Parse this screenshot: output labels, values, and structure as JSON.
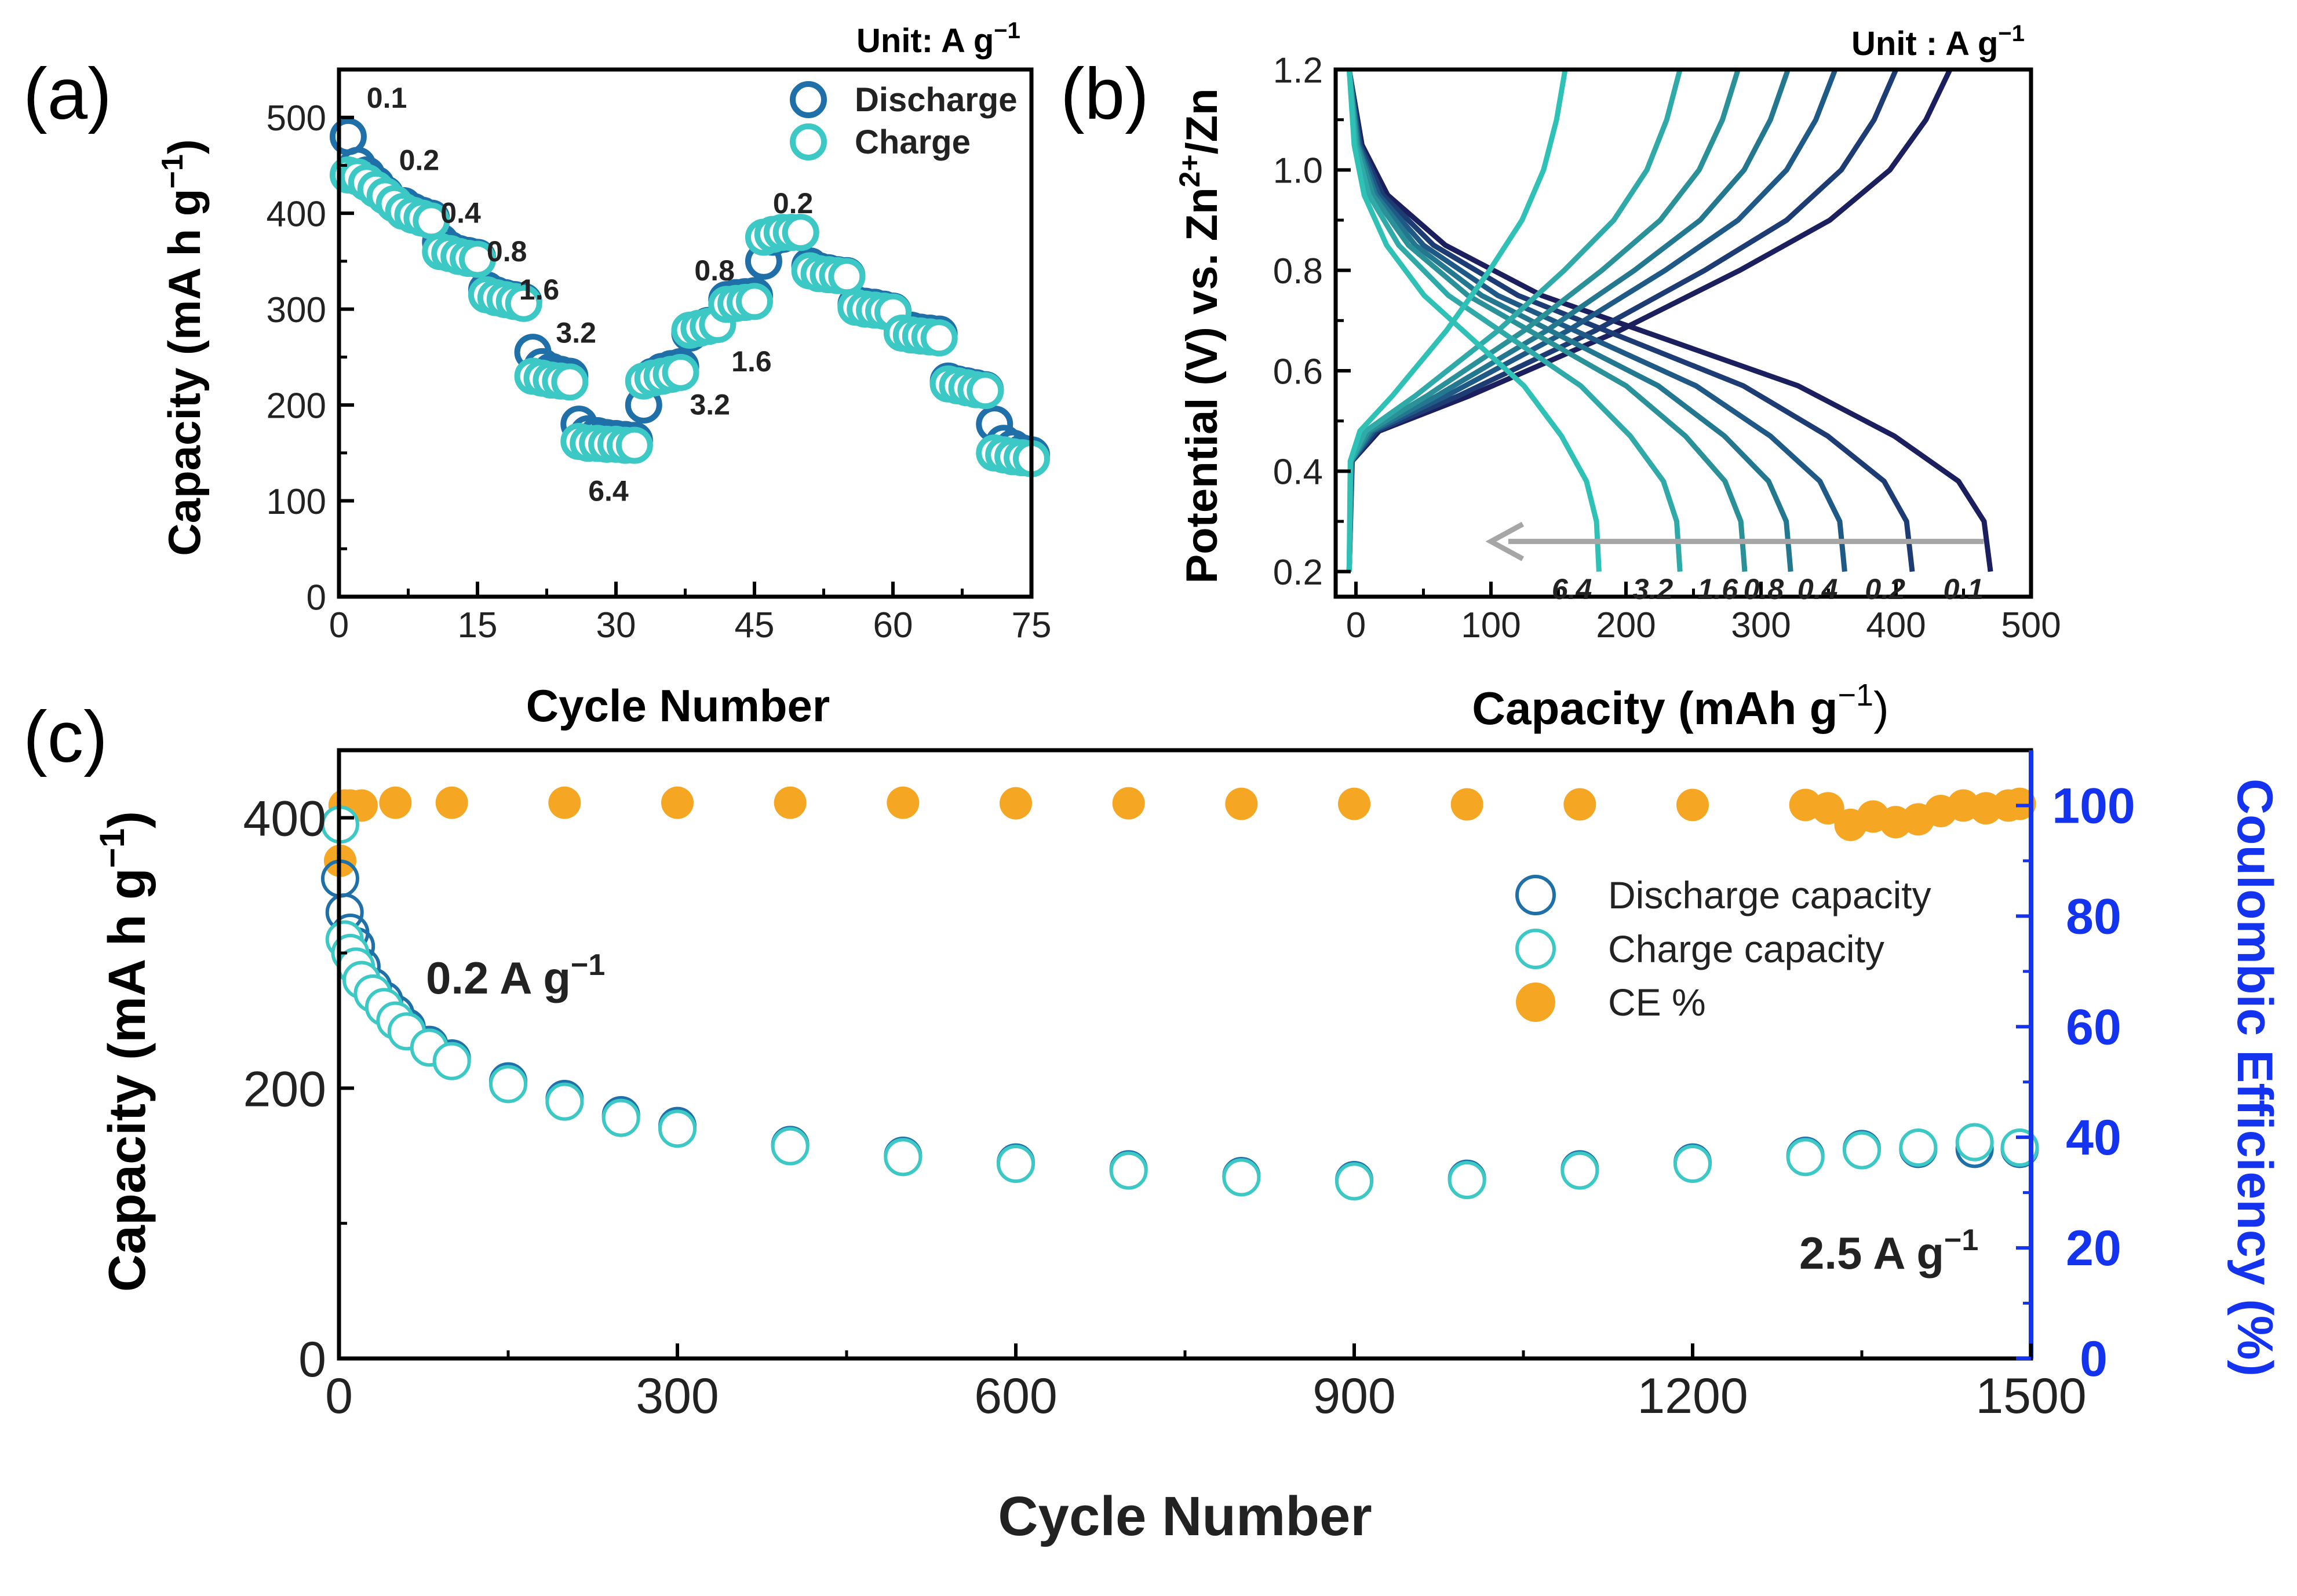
{
  "chart_data": [
    {
      "panel": "(a)",
      "type": "scatter",
      "xlabel": "Cycle Number",
      "ylabel": "Capacity (mA h g",
      "ylabel_sup": "−1",
      "ylabel_close": ")",
      "xlim": [
        0,
        75
      ],
      "ylim": [
        0,
        550
      ],
      "xticks": [
        0,
        15,
        30,
        45,
        60,
        75
      ],
      "yticks": [
        0,
        100,
        200,
        300,
        400,
        500
      ],
      "unit_label": "Unit: A g",
      "unit_sup": "−1",
      "legend": [
        "Discharge",
        "Charge"
      ],
      "rate_labels": [
        {
          "text": "0.1",
          "cycle": 3,
          "cap": 510
        },
        {
          "text": "0.2",
          "cycle": 6.5,
          "cap": 445
        },
        {
          "text": "0.4",
          "cycle": 11,
          "cap": 390
        },
        {
          "text": "0.8",
          "cycle": 16,
          "cap": 350
        },
        {
          "text": "1.6",
          "cycle": 19.5,
          "cap": 310
        },
        {
          "text": "3.2",
          "cycle": 23.5,
          "cap": 265
        },
        {
          "text": "6.4",
          "cycle": 27,
          "cap": 100
        },
        {
          "text": "3.2",
          "cycle": 38,
          "cap": 190
        },
        {
          "text": "1.6",
          "cycle": 42.5,
          "cap": 235
        },
        {
          "text": "0.8",
          "cycle": 38.5,
          "cap": 330
        },
        {
          "text": "0.2",
          "cycle": 47,
          "cap": 400
        }
      ],
      "series": [
        {
          "name": "Discharge",
          "x": [
            1,
            2,
            3,
            4,
            5,
            6,
            7,
            8,
            9,
            10,
            11,
            12,
            13,
            14,
            15,
            16,
            17,
            18,
            19,
            20,
            21,
            22,
            23,
            24,
            25,
            26,
            27,
            28,
            29,
            30,
            31,
            32,
            33,
            34,
            35,
            36,
            37,
            38,
            39,
            40,
            41,
            42,
            43,
            44,
            45,
            46,
            47,
            48,
            49,
            50,
            51,
            52,
            53,
            54,
            55,
            56,
            57,
            58,
            59,
            60,
            61,
            62,
            63,
            64,
            65,
            66,
            67,
            68,
            69,
            70,
            71,
            72,
            73,
            74,
            75
          ],
          "values": [
            480,
            450,
            440,
            430,
            420,
            410,
            408,
            402,
            398,
            395,
            370,
            362,
            358,
            356,
            354,
            320,
            315,
            312,
            310,
            308,
            255,
            240,
            235,
            232,
            230,
            180,
            170,
            168,
            166,
            165,
            164,
            163,
            200,
            230,
            235,
            238,
            240,
            275,
            280,
            283,
            285,
            310,
            312,
            313,
            314,
            350,
            375,
            378,
            380,
            380,
            345,
            340,
            338,
            336,
            335,
            305,
            303,
            302,
            300,
            298,
            280,
            278,
            276,
            275,
            274,
            225,
            222,
            220,
            218,
            216,
            180,
            160,
            155,
            150,
            148
          ]
        },
        {
          "name": "Charge",
          "x": [
            1,
            2,
            3,
            4,
            5,
            6,
            7,
            8,
            9,
            10,
            11,
            12,
            13,
            14,
            15,
            16,
            17,
            18,
            19,
            20,
            21,
            22,
            23,
            24,
            25,
            26,
            27,
            28,
            29,
            30,
            31,
            32,
            33,
            34,
            35,
            36,
            37,
            38,
            39,
            40,
            41,
            42,
            43,
            44,
            45,
            46,
            47,
            48,
            49,
            50,
            51,
            52,
            53,
            54,
            55,
            56,
            57,
            58,
            59,
            60,
            61,
            62,
            63,
            64,
            65,
            66,
            67,
            68,
            69,
            70,
            71,
            72,
            73,
            74,
            75
          ],
          "values": [
            440,
            438,
            432,
            425,
            418,
            410,
            402,
            398,
            395,
            392,
            360,
            358,
            355,
            353,
            352,
            315,
            312,
            310,
            308,
            306,
            230,
            228,
            226,
            225,
            224,
            162,
            160,
            160,
            159,
            159,
            158,
            158,
            225,
            228,
            230,
            232,
            234,
            278,
            280,
            282,
            284,
            305,
            306,
            307,
            308,
            375,
            378,
            380,
            380,
            380,
            340,
            337,
            336,
            335,
            334,
            302,
            300,
            299,
            298,
            297,
            275,
            273,
            272,
            271,
            270,
            222,
            220,
            218,
            216,
            215,
            150,
            148,
            146,
            145,
            144
          ]
        }
      ]
    },
    {
      "panel": "(b)",
      "type": "line",
      "xlabel": "Capacity (mAh g",
      "xlabel_sup": "−1",
      "xlabel_close": ")",
      "ylabel_pre": "Potential (V) vs. Zn",
      "ylabel_sup": "2+",
      "ylabel_post": "/Zn",
      "xlim": [
        -15,
        500
      ],
      "ylim": [
        0.15,
        1.2
      ],
      "xticks": [
        0,
        100,
        200,
        300,
        400,
        500
      ],
      "yticks": [
        0.2,
        0.4,
        0.6,
        0.8,
        1.0,
        1.2
      ],
      "ytick_labels": [
        "0.2",
        "0.4",
        "0.6",
        "0.8",
        "1.0",
        "1.2"
      ],
      "unit_label": "Unit : A g",
      "unit_sup": "−1",
      "rates": [
        "0.1",
        "0.2",
        "0.4",
        "0.8",
        "1.6",
        "3.2",
        "6.4"
      ],
      "discharge_capacity": [
        470,
        412,
        362,
        322,
        288,
        240,
        180
      ],
      "charge_capacity": [
        440,
        400,
        355,
        320,
        283,
        240,
        155
      ],
      "colors": [
        "#1b1f5e",
        "#1d3c74",
        "#1f5a86",
        "#237890",
        "#2a9198",
        "#30aaa8",
        "#2fc0b6"
      ],
      "arrow": {
        "from": 465,
        "to": 100,
        "at_v": 0.26
      }
    },
    {
      "panel": "(c)",
      "type": "scatter",
      "xlabel": "Cycle Number",
      "ylabel": "Capacity (mA h g",
      "ylabel_sup": "−1",
      "ylabel_close": ")",
      "y2label": "Coulombic Efficiency (%)",
      "xlim": [
        0,
        1500
      ],
      "ylim": [
        0,
        450
      ],
      "y2lim": [
        0,
        110
      ],
      "xticks": [
        0,
        300,
        600,
        900,
        1200,
        1500
      ],
      "yticks": [
        0,
        200,
        400
      ],
      "y2ticks": [
        0,
        20,
        40,
        60,
        80,
        100
      ],
      "legend": [
        "Discharge capacity",
        "Charge capacity",
        "CE %"
      ],
      "annotation_top": "0.2 A g",
      "annotation_top_sup": "−1",
      "annotation_bottom": "2.5 A g",
      "annotation_bottom_sup": "−1",
      "series": [
        {
          "name": "Discharge capacity",
          "x": [
            1,
            5,
            10,
            15,
            20,
            30,
            40,
            50,
            60,
            80,
            100,
            150,
            200,
            250,
            300,
            400,
            500,
            600,
            700,
            800,
            900,
            1000,
            1100,
            1200,
            1300,
            1350,
            1400,
            1450,
            1490
          ],
          "values": [
            355,
            330,
            315,
            305,
            290,
            275,
            265,
            255,
            245,
            232,
            222,
            205,
            192,
            180,
            172,
            158,
            150,
            145,
            140,
            135,
            132,
            133,
            140,
            145,
            150,
            155,
            155,
            155,
            155
          ]
        },
        {
          "name": "Charge capacity",
          "x": [
            1,
            5,
            10,
            15,
            20,
            30,
            40,
            50,
            60,
            80,
            100,
            150,
            200,
            250,
            300,
            400,
            500,
            600,
            700,
            800,
            900,
            1000,
            1100,
            1200,
            1300,
            1350,
            1400,
            1450,
            1490
          ],
          "values": [
            395,
            310,
            300,
            290,
            280,
            270,
            260,
            250,
            242,
            230,
            220,
            203,
            190,
            178,
            170,
            157,
            149,
            144,
            139,
            134,
            131,
            132,
            139,
            144,
            149,
            154,
            156,
            160,
            156
          ]
        },
        {
          "name": "CE %",
          "x": [
            1,
            5,
            10,
            20,
            50,
            100,
            200,
            300,
            400,
            500,
            600,
            700,
            800,
            900,
            1000,
            1100,
            1200,
            1300,
            1320,
            1340,
            1360,
            1380,
            1400,
            1420,
            1440,
            1460,
            1480,
            1490
          ],
          "values": [
            90,
            100,
            100,
            100,
            100.5,
            100.5,
            100.5,
            100.5,
            100.5,
            100.5,
            100.4,
            100.4,
            100.3,
            100.3,
            100.2,
            100.2,
            100.1,
            100.1,
            99.5,
            96.5,
            98,
            97,
            97.5,
            99,
            100,
            99.5,
            100,
            100.3
          ]
        }
      ]
    }
  ],
  "panel_labels": [
    "(a)",
    "(b)",
    "(c)"
  ]
}
